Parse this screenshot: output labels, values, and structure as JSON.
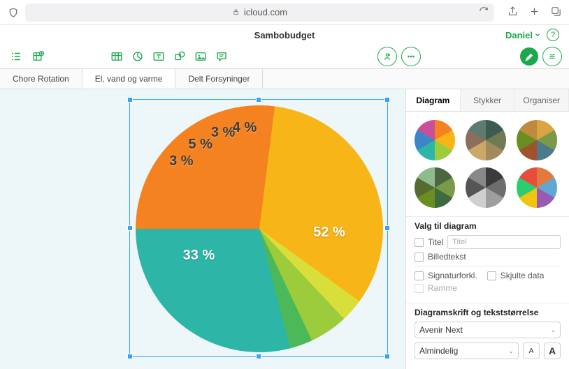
{
  "browser": {
    "url": "icloud.com"
  },
  "document": {
    "title": "Sambobudget",
    "user": "Daniel"
  },
  "sheets": [
    {
      "label": "Chore Rotation",
      "active": false
    },
    {
      "label": "El, vand og varme",
      "active": true
    },
    {
      "label": "Delt Forsyninger",
      "active": false
    }
  ],
  "chart": {
    "type": "pie",
    "background": "#edf7f9",
    "selection_color": "#3aa0ff",
    "slices": [
      {
        "label": "52 %",
        "value": 52,
        "color": "#f58220"
      },
      {
        "label": "33 %",
        "value": 33,
        "color": "#f8b517"
      },
      {
        "label": "3 %",
        "value": 3,
        "color": "#d9df3a"
      },
      {
        "label": "5 %",
        "value": 5,
        "color": "#9ccb3b"
      },
      {
        "label": "3 %",
        "value": 3,
        "color": "#4bb95a"
      },
      {
        "label": "4 %",
        "value": 4,
        "color": "#2db6a8"
      }
    ],
    "label_font": "Avenir Next",
    "label_fontsize": 20,
    "label_color_light": "#ffffff",
    "label_color_dark": "#3b3b3b"
  },
  "inspector": {
    "tabs": [
      {
        "label": "Diagram",
        "active": true
      },
      {
        "label": "Stykker",
        "active": false
      },
      {
        "label": "Organiser",
        "active": false
      }
    ],
    "style_thumbs": [
      [
        "#f58220",
        "#f8b517",
        "#9ccb3b",
        "#2db6a8",
        "#3a87c8",
        "#c94f9b"
      ],
      [
        "#3e5b52",
        "#6f7a52",
        "#a38a5c",
        "#c9a86a",
        "#8c6f5a",
        "#5d7b6e"
      ],
      [
        "#d9a441",
        "#7a9a4a",
        "#4a7a8c",
        "#a0522d",
        "#6b8e23",
        "#c08a3e"
      ],
      [
        "#4a6741",
        "#7a9a4a",
        "#3e6b3e",
        "#6b8e23",
        "#556b2f",
        "#8fbc8f"
      ],
      [
        "#3b3b3b",
        "#6e6e6e",
        "#9e9e9e",
        "#cfcfcf",
        "#555555",
        "#888888"
      ],
      [
        "#e07a3f",
        "#5fa8d3",
        "#9b59b6",
        "#f1c40f",
        "#2ecc71",
        "#e74c3c"
      ]
    ],
    "options": {
      "section_title": "Valg til diagram",
      "title_chk": "Titel",
      "title_placeholder": "Titel",
      "caption_chk": "Billedtekst",
      "legend_chk": "Signaturforkl.",
      "hidden_chk": "Skjulte data",
      "frame_chk": "Ramme"
    },
    "font": {
      "section_title": "Diagramskrift og tekststørrelse",
      "family": "Avenir Next",
      "style": "Almindelig",
      "size_small": "A",
      "size_large": "A"
    }
  }
}
